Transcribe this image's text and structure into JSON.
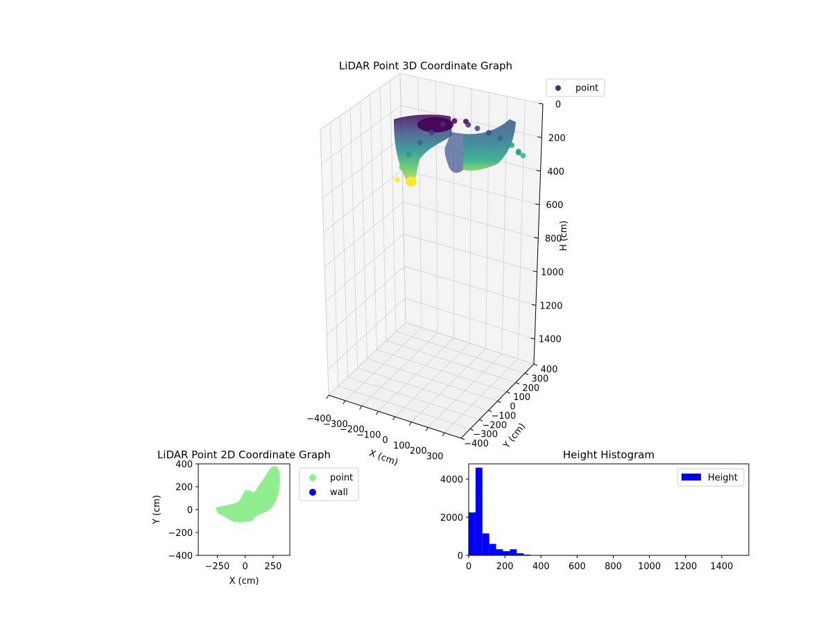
{
  "figure": {
    "background": "#ffffff"
  },
  "chart_data": [
    {
      "type": "scatter",
      "projection": "3d",
      "title": "LiDAR Point 3D Coordinate Graph",
      "xlabel": "X (cm)",
      "ylabel": "Y (cm)",
      "zlabel": "H (cm)",
      "xlim": [
        -400,
        400
      ],
      "ylim": [
        -400,
        400
      ],
      "zlim": [
        0,
        1550
      ],
      "z_inverted": true,
      "xticks": [
        -400,
        -300,
        -200,
        -100,
        0,
        100,
        200,
        300
      ],
      "yticks": [
        -400,
        -300,
        -200,
        -100,
        0,
        100,
        200,
        300,
        400
      ],
      "zticks": [
        0,
        200,
        400,
        600,
        800,
        1000,
        1200,
        1400
      ],
      "x_tick_labels": [
        "−400",
        "−300",
        "−200",
        "−100",
        "0",
        "100",
        "200",
        "300"
      ],
      "y_tick_labels": [
        "−400",
        "−300",
        "−200",
        "−100",
        "0",
        "100",
        "200",
        "300",
        "400"
      ],
      "z_tick_labels": [
        "0",
        "200",
        "400",
        "600",
        "800",
        "1000",
        "1200",
        "1400"
      ],
      "colormap": "viridis",
      "grid": true,
      "legend": {
        "placement": "upper-right-outside",
        "entries": [
          {
            "label": "point",
            "color": "#482878"
          }
        ]
      },
      "series": [
        {
          "name": "point",
          "description_points": [
            {
              "x": -250,
              "y": 0,
              "h": 380
            },
            {
              "x": -230,
              "y": -60,
              "h": 300
            },
            {
              "x": -200,
              "y": -80,
              "h": 220
            },
            {
              "x": -150,
              "y": -90,
              "h": 150
            },
            {
              "x": -100,
              "y": -95,
              "h": 90
            },
            {
              "x": -50,
              "y": -90,
              "h": 40
            },
            {
              "x": 0,
              "y": -85,
              "h": 20
            },
            {
              "x": 50,
              "y": 0,
              "h": 30
            },
            {
              "x": 60,
              "y": 120,
              "h": 60
            },
            {
              "x": 100,
              "y": 100,
              "h": 80
            },
            {
              "x": 150,
              "y": 150,
              "h": 110
            },
            {
              "x": 200,
              "y": 250,
              "h": 150
            },
            {
              "x": 250,
              "y": 330,
              "h": 200
            },
            {
              "x": 280,
              "y": 370,
              "h": 240
            },
            {
              "x": 300,
              "y": 300,
              "h": 260
            },
            {
              "x": 280,
              "y": 150,
              "h": 230
            }
          ]
        }
      ]
    },
    {
      "type": "scatter",
      "title": "LiDAR Point 2D Coordinate Graph",
      "xlabel": "X (cm)",
      "ylabel": "Y (cm)",
      "xlim": [
        -420,
        400
      ],
      "ylim": [
        -400,
        400
      ],
      "xticks": [
        -250,
        0,
        250
      ],
      "yticks": [
        -400,
        -200,
        0,
        200,
        400
      ],
      "x_tick_labels": [
        "−250",
        "0",
        "250"
      ],
      "y_tick_labels": [
        "−400",
        "−200",
        "0",
        "200",
        "400"
      ],
      "legend": {
        "placement": "upper-right-outside",
        "entries": [
          {
            "label": "point",
            "color": "#90ee90"
          },
          {
            "label": "wall",
            "color": "#0000ff"
          }
        ]
      },
      "series": [
        {
          "name": "point",
          "color": "#90ee90",
          "outline": [
            [
              -250,
              10
            ],
            [
              -240,
              -20
            ],
            [
              -200,
              -40
            ],
            [
              -150,
              -70
            ],
            [
              -100,
              -95
            ],
            [
              -50,
              -100
            ],
            [
              0,
              -95
            ],
            [
              50,
              -90
            ],
            [
              100,
              -40
            ],
            [
              150,
              -20
            ],
            [
              200,
              0
            ],
            [
              240,
              40
            ],
            [
              270,
              90
            ],
            [
              290,
              160
            ],
            [
              300,
              260
            ],
            [
              295,
              330
            ],
            [
              270,
              370
            ],
            [
              240,
              360
            ],
            [
              200,
              300
            ],
            [
              150,
              230
            ],
            [
              110,
              170
            ],
            [
              80,
              130
            ],
            [
              50,
              150
            ],
            [
              10,
              160
            ],
            [
              -20,
              110
            ],
            [
              -50,
              60
            ],
            [
              -100,
              40
            ],
            [
              -150,
              30
            ],
            [
              -200,
              20
            ]
          ]
        },
        {
          "name": "wall",
          "color": "#0000ff",
          "values": []
        }
      ]
    },
    {
      "type": "bar",
      "title": "Height Histogram",
      "xlabel": "",
      "ylabel": "",
      "xlim": [
        0,
        1550
      ],
      "ylim": [
        0,
        4800
      ],
      "xticks": [
        0,
        200,
        400,
        600,
        800,
        1000,
        1200,
        1400
      ],
      "yticks": [
        0,
        2000,
        4000
      ],
      "x_tick_labels": [
        "0",
        "200",
        "400",
        "600",
        "800",
        "1000",
        "1200",
        "1400"
      ],
      "y_tick_labels": [
        "0",
        "2000",
        "4000"
      ],
      "legend": {
        "placement": "top-right",
        "entries": [
          {
            "label": "Height",
            "color": "#0000ff"
          }
        ]
      },
      "bin_width": 38,
      "bins": [
        {
          "start": 0,
          "value": 2250
        },
        {
          "start": 38,
          "value": 4600
        },
        {
          "start": 76,
          "value": 1150
        },
        {
          "start": 114,
          "value": 600
        },
        {
          "start": 152,
          "value": 320
        },
        {
          "start": 190,
          "value": 220
        },
        {
          "start": 228,
          "value": 320
        },
        {
          "start": 266,
          "value": 110
        },
        {
          "start": 304,
          "value": 40
        },
        {
          "start": 342,
          "value": 10
        }
      ],
      "series": [
        {
          "name": "Height",
          "color": "#0000ff"
        }
      ]
    }
  ]
}
